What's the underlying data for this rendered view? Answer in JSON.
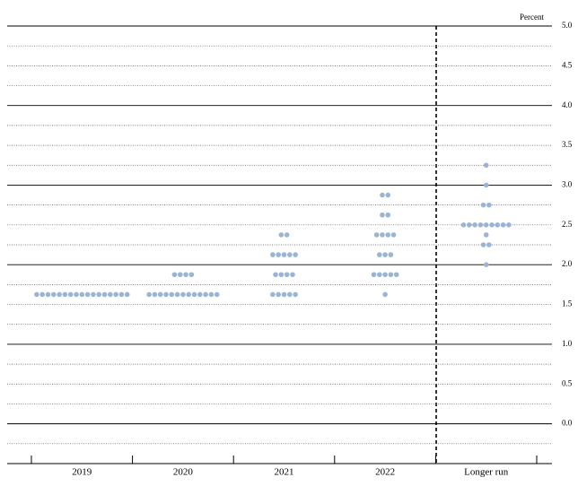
{
  "chart_data": {
    "type": "dot",
    "y_label": "Percent",
    "color": "#9ab5d3",
    "categories": [
      "2019",
      "2020",
      "2021",
      "2022",
      "Longer run"
    ],
    "dots": [
      [
        {
          "y": 1.625,
          "n": 17
        }
      ],
      [
        {
          "y": 1.875,
          "n": 4
        },
        {
          "y": 1.625,
          "n": 13
        }
      ],
      [
        {
          "y": 2.375,
          "n": 2
        },
        {
          "y": 2.125,
          "n": 5
        },
        {
          "y": 1.875,
          "n": 4
        },
        {
          "y": 1.625,
          "n": 5
        }
      ],
      [
        {
          "y": 2.875,
          "n": 2
        },
        {
          "y": 2.625,
          "n": 2
        },
        {
          "y": 2.375,
          "n": 4
        },
        {
          "y": 2.125,
          "n": 3
        },
        {
          "y": 1.875,
          "n": 5
        },
        {
          "y": 1.625,
          "n": 1
        }
      ],
      [
        {
          "y": 3.25,
          "n": 1
        },
        {
          "y": 3.0,
          "n": 1
        },
        {
          "y": 2.75,
          "n": 2
        },
        {
          "y": 2.5,
          "n": 9
        },
        {
          "y": 2.375,
          "n": 1
        },
        {
          "y": 2.25,
          "n": 2
        },
        {
          "y": 2.0,
          "n": 1
        }
      ]
    ],
    "ylim": [
      -0.5,
      5.0
    ],
    "yticks": [
      {
        "value": 0,
        "label": "0.0"
      },
      0.5,
      {
        "value": 1,
        "label": "1.0"
      },
      1.5,
      {
        "value": 2,
        "label": "2.0"
      },
      2.5,
      {
        "value": 3,
        "label": "3.0"
      },
      3.5,
      {
        "value": 4,
        "label": "4.0"
      },
      4.5,
      {
        "value": 5,
        "label": "5.0"
      }
    ],
    "minor_yticks": [
      -0.25,
      0.25,
      0.75,
      1.25,
      1.75,
      2.25,
      2.75,
      3.25,
      3.75,
      4.25,
      4.75
    ]
  }
}
